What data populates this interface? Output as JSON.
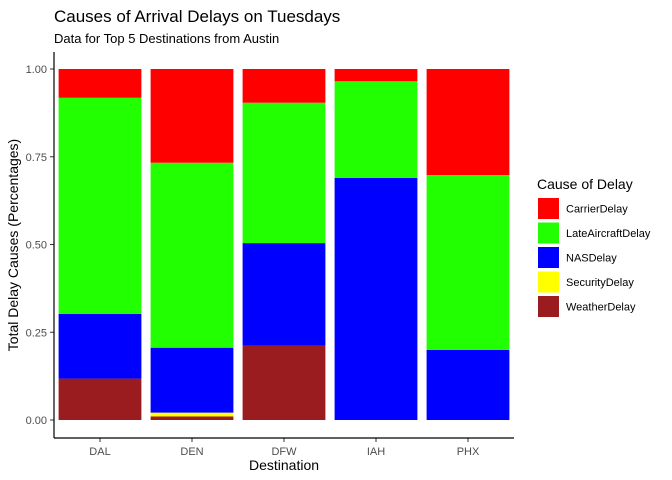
{
  "chart_data": {
    "type": "bar",
    "stacked": true,
    "title": "Causes of Arrival Delays on Tuesdays",
    "subtitle": "Data for Top 5 Destinations from Austin",
    "xlabel": "Destination",
    "ylabel": "Total Delay Causes (Percentages)",
    "categories": [
      "DAL",
      "DEN",
      "DFW",
      "IAH",
      "PHX"
    ],
    "ylim": [
      0,
      1
    ],
    "yticks": [
      "0.00",
      "0.25",
      "0.50",
      "0.75",
      "1.00"
    ],
    "grid": false,
    "legend": {
      "title": "Cause of Delay",
      "position": "right"
    },
    "series": [
      {
        "name": "CarrierDelay",
        "color": "#ff0000",
        "values": [
          0.082,
          0.267,
          0.096,
          0.035,
          0.302
        ]
      },
      {
        "name": "LateAircraftDelay",
        "color": "#22ff00",
        "values": [
          0.616,
          0.527,
          0.4,
          0.275,
          0.498
        ]
      },
      {
        "name": "NASDelay",
        "color": "#0000ff",
        "values": [
          0.184,
          0.185,
          0.292,
          0.69,
          0.2
        ]
      },
      {
        "name": "SecurityDelay",
        "color": "#ffff00",
        "values": [
          0.0,
          0.011,
          0.0,
          0.0,
          0.0
        ]
      },
      {
        "name": "WeatherDelay",
        "color": "#9a1c1f",
        "values": [
          0.118,
          0.01,
          0.212,
          0.0,
          0.0
        ]
      }
    ]
  }
}
